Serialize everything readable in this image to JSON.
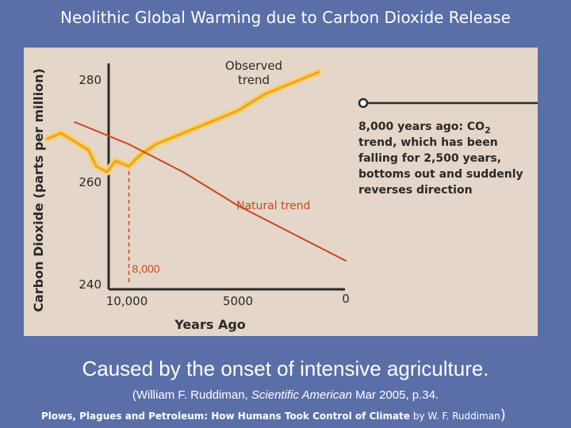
{
  "slide": {
    "title": "Neolithic Global Warming due to Carbon Dioxide Release",
    "caption": "Caused by the onset of intensive agriculture.",
    "citation": {
      "open": "(",
      "author": "William F. Ruddiman, ",
      "journal": "Scientific American",
      "rest": " Mar 2005, p.34."
    },
    "book": {
      "title": "Plows, Plagues and Petroleum: How Humans Took Control of Climate",
      "by": " by W. F. Ruddiman",
      "close": ")"
    }
  },
  "chart_data": {
    "type": "line",
    "ylabel": "Carbon Dioxide (parts per million)",
    "xlabel": "Years Ago",
    "x_ticks": [
      "10,000",
      "5000",
      "0"
    ],
    "y_ticks": [
      "280",
      "260",
      "240"
    ],
    "xlim": [
      11000,
      0
    ],
    "ylim": [
      238,
      285
    ],
    "series": [
      {
        "name": "Observed trend",
        "color": "#f0a820",
        "x": [
          11000,
          10500,
          10000,
          9500,
          9200,
          8800,
          8500,
          8000,
          7600,
          7000,
          6000,
          5000,
          4000,
          3000,
          2000,
          1000
        ],
        "y": [
          267,
          268,
          266.5,
          265,
          262,
          261,
          263,
          262,
          264,
          266,
          268,
          270,
          272,
          275,
          277,
          279
        ]
      },
      {
        "name": "Natural trend",
        "color": "#cc4422",
        "x": [
          10000,
          8000,
          6000,
          4000,
          2000,
          0
        ],
        "y": [
          270,
          266,
          261,
          255,
          250,
          245
        ]
      }
    ],
    "annotations": {
      "marker_label": "8,000",
      "marker_x": 8000,
      "callout": "8,000 years ago: CO2 trend, which has been falling for 2,500 years, bottoms out and suddenly reverses direction",
      "callout_lines": [
        "8,000 years ago: CO",
        "trend, which has been",
        "falling for 2,500 years,",
        "bottoms out and suddenly",
        "reverses direction"
      ],
      "callout_sub": "2"
    }
  },
  "colors": {
    "background": "#5a6ea8",
    "figure_bg": "#e4d6c8",
    "observed": "#f0a820",
    "natural": "#cc4422"
  }
}
